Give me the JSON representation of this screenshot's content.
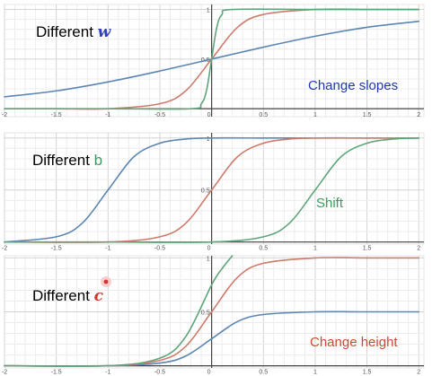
{
  "chart_data": [
    {
      "type": "line",
      "panel": "different-w",
      "label_prefix": "Different ",
      "label_symbol": "w",
      "label_symbol_color": "#2f3fb8",
      "annotation": "Change slopes",
      "annotation_color": "#1f38a8",
      "xlim": [
        -2.0,
        2.05
      ],
      "ylim": [
        -0.08,
        1.05
      ],
      "xticks": [
        -2,
        -1.5,
        -1,
        -0.5,
        0,
        0.5,
        1,
        1.5,
        2
      ],
      "xtick_labels": [
        "-2",
        "-1.5",
        "-1",
        "-0.5",
        "0",
        "0.5",
        "1",
        "1.5",
        "2"
      ],
      "yticks": [
        0.5,
        1
      ],
      "ytick_labels": [
        "0.5",
        "1"
      ],
      "grid": true,
      "series": [
        {
          "color": "#5b86b3",
          "x": [
            -2,
            -1.5,
            -1,
            -0.5,
            0,
            0.5,
            1,
            1.5,
            2
          ],
          "y": [
            0.12,
            0.18,
            0.27,
            0.38,
            0.5,
            0.62,
            0.73,
            0.82,
            0.88
          ]
        },
        {
          "color": "#cd7b6b",
          "x": [
            -2,
            -1.5,
            -1,
            -0.5,
            -0.25,
            0,
            0.25,
            0.5,
            1,
            1.5,
            2
          ],
          "y": [
            0.0,
            0.0,
            0.0,
            0.05,
            0.18,
            0.5,
            0.82,
            0.95,
            1.0,
            1.0,
            1.0
          ]
        },
        {
          "color": "#5fa57b",
          "x": [
            -2,
            -1,
            -0.2,
            -0.1,
            -0.05,
            0,
            0.05,
            0.1,
            0.2,
            1,
            2
          ],
          "y": [
            0.0,
            0.0,
            0.0,
            0.05,
            0.18,
            0.5,
            0.82,
            0.95,
            1.0,
            1.0,
            1.0
          ]
        }
      ]
    },
    {
      "type": "line",
      "panel": "different-b",
      "label_prefix": "Different ",
      "label_symbol": "b",
      "label_symbol_color": "#3a9a62",
      "annotation": "Shift",
      "annotation_color": "#3a9a62",
      "xlim": [
        -2.0,
        2.05
      ],
      "ylim": [
        -0.02,
        1.05
      ],
      "xticks": [
        -2,
        -1.5,
        -1,
        -0.5,
        0,
        0.5,
        1,
        1.5,
        2
      ],
      "xtick_labels": [
        "-2",
        "-1.5",
        "-1",
        "-0.5",
        "0",
        "0.5",
        "1",
        "1.5",
        "2"
      ],
      "yticks": [
        0.5,
        1
      ],
      "ytick_labels": [
        "0.5",
        "1"
      ],
      "grid": true,
      "series": [
        {
          "color": "#5b86b3",
          "x": [
            -2,
            -1.5,
            -1.25,
            -1,
            -0.75,
            -0.5,
            -0.25,
            0,
            0.5,
            1,
            2
          ],
          "y": [
            0.0,
            0.05,
            0.18,
            0.5,
            0.82,
            0.95,
            0.99,
            1.0,
            1.0,
            1.0,
            1.0
          ]
        },
        {
          "color": "#cd7b6b",
          "x": [
            -2,
            -1,
            -0.5,
            -0.25,
            0,
            0.25,
            0.5,
            0.75,
            1,
            1.5,
            2
          ],
          "y": [
            0.0,
            0.0,
            0.05,
            0.18,
            0.5,
            0.82,
            0.95,
            0.99,
            1.0,
            1.0,
            1.0
          ]
        },
        {
          "color": "#5fa57b",
          "x": [
            -2,
            -1,
            0,
            0.5,
            0.75,
            1,
            1.25,
            1.5,
            1.75,
            2
          ],
          "y": [
            0.0,
            0.0,
            0.0,
            0.05,
            0.18,
            0.5,
            0.82,
            0.95,
            0.99,
            1.0
          ]
        }
      ]
    },
    {
      "type": "line",
      "panel": "different-c",
      "label_prefix": "Different ",
      "label_symbol": "c",
      "label_symbol_color": "#cc3a2a",
      "annotation": "Change height",
      "annotation_color": "#cc4a35",
      "xlim": [
        -2.0,
        2.05
      ],
      "ylim": [
        -0.02,
        1.02
      ],
      "xticks": [
        -2,
        -1.5,
        -1,
        -0.5,
        0,
        0.5,
        1,
        1.5,
        2
      ],
      "xtick_labels": [
        "-2",
        "-1.5",
        "-1",
        "-0.5",
        "0",
        "0.5",
        "1",
        "1.5",
        "2"
      ],
      "yticks": [
        0.5,
        1
      ],
      "ytick_labels": [
        "0.5",
        "1"
      ],
      "grid": true,
      "series": [
        {
          "color": "#5b86b3",
          "x": [
            -2,
            -1,
            -0.5,
            -0.25,
            0,
            0.25,
            0.5,
            1,
            1.5,
            2
          ],
          "y": [
            0.0,
            0.0,
            0.025,
            0.09,
            0.25,
            0.41,
            0.475,
            0.5,
            0.5,
            0.5
          ]
        },
        {
          "color": "#cd7b6b",
          "x": [
            -2,
            -1,
            -0.5,
            -0.25,
            0,
            0.25,
            0.5,
            1,
            1.5,
            2
          ],
          "y": [
            0.0,
            0.0,
            0.05,
            0.18,
            0.5,
            0.82,
            0.95,
            1.0,
            1.0,
            1.0
          ]
        },
        {
          "color": "#5fa57b",
          "x": [
            -2,
            -1,
            -0.5,
            -0.25,
            0,
            0.1,
            0.2
          ],
          "y": [
            0.0,
            0.0,
            0.07,
            0.27,
            0.75,
            0.9,
            1.02
          ]
        }
      ]
    }
  ]
}
